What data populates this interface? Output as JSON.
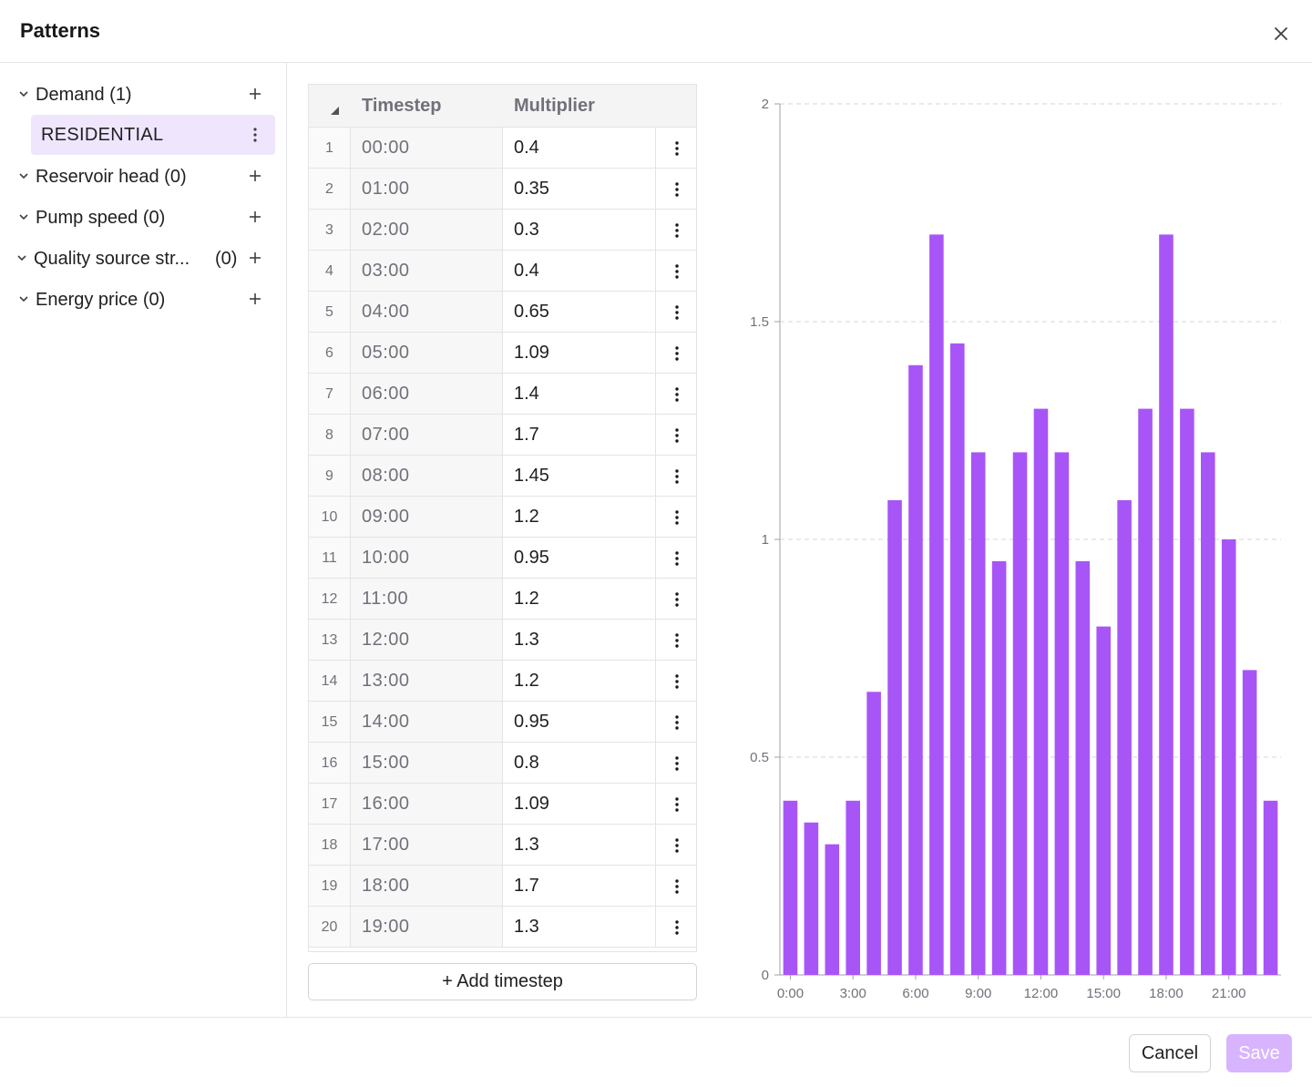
{
  "dialog": {
    "title": "Patterns",
    "close_icon": "close-icon"
  },
  "sidebar": {
    "groups": [
      {
        "label": "Demand (1)",
        "count": "",
        "expanded": true
      },
      {
        "label": "Reservoir head (0)",
        "count": ""
      },
      {
        "label": "Pump speed (0)",
        "count": ""
      },
      {
        "label": "Quality source str...",
        "count": "(0)"
      },
      {
        "label": "Energy price (0)",
        "count": ""
      }
    ],
    "selected_pattern": "RESIDENTIAL"
  },
  "table": {
    "header_timestep": "Timestep",
    "header_multiplier": "Multiplier",
    "rows": [
      {
        "index": "1",
        "timestep": "00:00",
        "multiplier": "0.4"
      },
      {
        "index": "2",
        "timestep": "01:00",
        "multiplier": "0.35"
      },
      {
        "index": "3",
        "timestep": "02:00",
        "multiplier": "0.3"
      },
      {
        "index": "4",
        "timestep": "03:00",
        "multiplier": "0.4"
      },
      {
        "index": "5",
        "timestep": "04:00",
        "multiplier": "0.65"
      },
      {
        "index": "6",
        "timestep": "05:00",
        "multiplier": "1.09"
      },
      {
        "index": "7",
        "timestep": "06:00",
        "multiplier": "1.4"
      },
      {
        "index": "8",
        "timestep": "07:00",
        "multiplier": "1.7"
      },
      {
        "index": "9",
        "timestep": "08:00",
        "multiplier": "1.45"
      },
      {
        "index": "10",
        "timestep": "09:00",
        "multiplier": "1.2"
      },
      {
        "index": "11",
        "timestep": "10:00",
        "multiplier": "0.95"
      },
      {
        "index": "12",
        "timestep": "11:00",
        "multiplier": "1.2"
      },
      {
        "index": "13",
        "timestep": "12:00",
        "multiplier": "1.3"
      },
      {
        "index": "14",
        "timestep": "13:00",
        "multiplier": "1.2"
      },
      {
        "index": "15",
        "timestep": "14:00",
        "multiplier": "0.95"
      },
      {
        "index": "16",
        "timestep": "15:00",
        "multiplier": "0.8"
      },
      {
        "index": "17",
        "timestep": "16:00",
        "multiplier": "1.09"
      },
      {
        "index": "18",
        "timestep": "17:00",
        "multiplier": "1.3"
      },
      {
        "index": "19",
        "timestep": "18:00",
        "multiplier": "1.7"
      },
      {
        "index": "20",
        "timestep": "19:00",
        "multiplier": "1.3"
      }
    ],
    "add_button": "+ Add timestep"
  },
  "chart_data": {
    "type": "bar",
    "categories": [
      "0:00",
      "1:00",
      "2:00",
      "3:00",
      "4:00",
      "5:00",
      "6:00",
      "7:00",
      "8:00",
      "9:00",
      "10:00",
      "11:00",
      "12:00",
      "13:00",
      "14:00",
      "15:00",
      "16:00",
      "17:00",
      "18:00",
      "19:00",
      "20:00",
      "21:00",
      "22:00",
      "23:00"
    ],
    "values": [
      0.4,
      0.35,
      0.3,
      0.4,
      0.65,
      1.09,
      1.4,
      1.7,
      1.45,
      1.2,
      0.95,
      1.2,
      1.3,
      1.2,
      0.95,
      0.8,
      1.09,
      1.3,
      1.7,
      1.3,
      1.2,
      1.0,
      0.7,
      0.4
    ],
    "x_tick_labels": [
      "0:00",
      "3:00",
      "6:00",
      "9:00",
      "12:00",
      "15:00",
      "18:00",
      "21:00"
    ],
    "y_ticks": [
      "0",
      "0.5",
      "1",
      "1.5",
      "2"
    ],
    "ylim": [
      0,
      2
    ],
    "grid": "horizontal dashed",
    "bar_color": "#a855f7"
  },
  "footer": {
    "cancel": "Cancel",
    "save": "Save"
  },
  "colors": {
    "accent": "#a855f7",
    "selected_bg": "#efe6fd",
    "save_disabled": "#d8b4fe"
  }
}
